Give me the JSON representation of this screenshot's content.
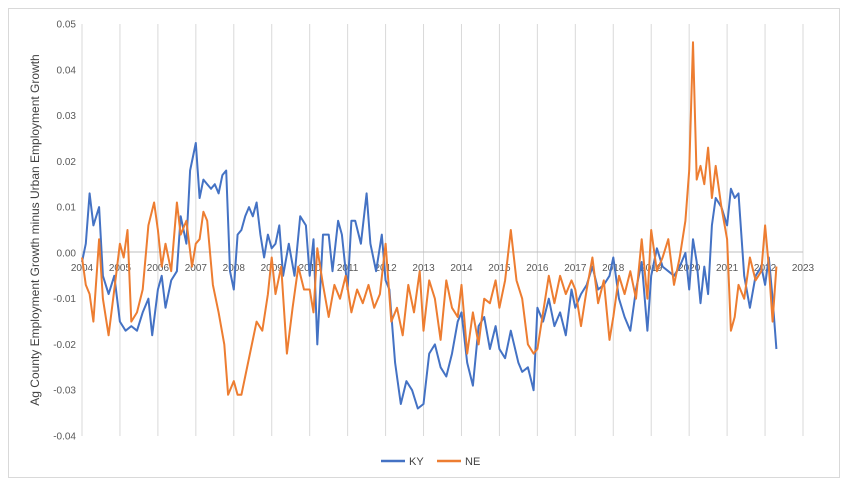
{
  "chart_data": {
    "type": "line",
    "title": "",
    "xlabel": "",
    "ylabel": "Ag County Employment Growth minus Urban Employment Growth",
    "xlim": [
      2004,
      2023
    ],
    "ylim": [
      -0.04,
      0.05
    ],
    "x_ticks": [
      "2004",
      "2005",
      "2006",
      "2007",
      "2008",
      "2009",
      "2010",
      "2011",
      "2012",
      "2013",
      "2014",
      "2015",
      "2016",
      "2017",
      "2018",
      "2019",
      "2020",
      "2021",
      "2022",
      "2023"
    ],
    "y_ticks": [
      "-0.04",
      "-0.03",
      "-0.02",
      "-0.01",
      "0.00",
      "0.01",
      "0.02",
      "0.03",
      "0.04",
      "0.05"
    ],
    "y_tick_values": [
      -0.04,
      -0.03,
      -0.02,
      -0.01,
      0,
      0.01,
      0.02,
      0.03,
      0.04,
      0.05
    ],
    "grid": "vertical",
    "legend": "bottom-center",
    "series": [
      {
        "name": "KY",
        "color": "#4472C4",
        "x": [
          2004.0,
          2004.1,
          2004.2,
          2004.3,
          2004.45,
          2004.55,
          2004.7,
          2004.85,
          2005.0,
          2005.15,
          2005.3,
          2005.45,
          2005.6,
          2005.75,
          2005.85,
          2006.0,
          2006.1,
          2006.2,
          2006.35,
          2006.5,
          2006.6,
          2006.75,
          2006.85,
          2007.0,
          2007.1,
          2007.2,
          2007.3,
          2007.4,
          2007.5,
          2007.6,
          2007.7,
          2007.8,
          2007.9,
          2008.0,
          2008.1,
          2008.2,
          2008.3,
          2008.4,
          2008.5,
          2008.6,
          2008.7,
          2008.8,
          2008.9,
          2009.0,
          2009.1,
          2009.2,
          2009.3,
          2009.45,
          2009.6,
          2009.75,
          2009.9,
          2010.0,
          2010.1,
          2010.2,
          2010.35,
          2010.5,
          2010.6,
          2010.75,
          2010.85,
          2011.0,
          2011.1,
          2011.2,
          2011.35,
          2011.5,
          2011.6,
          2011.75,
          2011.9,
          2012.0,
          2012.1,
          2012.25,
          2012.4,
          2012.55,
          2012.7,
          2012.85,
          2013.0,
          2013.15,
          2013.3,
          2013.45,
          2013.6,
          2013.75,
          2013.9,
          2014.0,
          2014.15,
          2014.3,
          2014.45,
          2014.6,
          2014.75,
          2014.9,
          2015.0,
          2015.15,
          2015.3,
          2015.5,
          2015.6,
          2015.75,
          2015.9,
          2016.0,
          2016.15,
          2016.3,
          2016.45,
          2016.6,
          2016.75,
          2016.9,
          2017.0,
          2017.15,
          2017.3,
          2017.45,
          2017.6,
          2017.75,
          2017.9,
          2018.0,
          2018.15,
          2018.3,
          2018.45,
          2018.6,
          2018.75,
          2018.9,
          2019.0,
          2019.15,
          2019.3,
          2019.45,
          2019.6,
          2019.75,
          2019.9,
          2020.0,
          2020.1,
          2020.2,
          2020.3,
          2020.4,
          2020.5,
          2020.6,
          2020.7,
          2020.85,
          2021.0,
          2021.1,
          2021.2,
          2021.3,
          2021.45,
          2021.6,
          2021.75,
          2021.9,
          2022.0,
          2022.1,
          2022.2,
          2022.3
        ],
        "y": [
          -0.002,
          0.002,
          0.013,
          0.006,
          0.01,
          -0.005,
          -0.009,
          -0.005,
          -0.015,
          -0.017,
          -0.016,
          -0.017,
          -0.013,
          -0.01,
          -0.018,
          -0.008,
          -0.005,
          -0.012,
          -0.006,
          -0.004,
          0.008,
          0.002,
          0.018,
          0.024,
          0.012,
          0.016,
          0.015,
          0.014,
          0.015,
          0.013,
          0.017,
          0.018,
          -0.004,
          -0.008,
          0.004,
          0.005,
          0.008,
          0.01,
          0.008,
          0.011,
          0.004,
          -0.001,
          0.004,
          0.001,
          0.002,
          0.006,
          -0.005,
          0.002,
          -0.005,
          0.008,
          0.006,
          -0.005,
          0.003,
          -0.02,
          0.004,
          0.004,
          -0.004,
          0.007,
          0.004,
          -0.008,
          0.007,
          0.007,
          0.002,
          0.013,
          0.002,
          -0.004,
          0.004,
          -0.006,
          -0.008,
          -0.024,
          -0.033,
          -0.028,
          -0.03,
          -0.034,
          -0.033,
          -0.022,
          -0.02,
          -0.025,
          -0.027,
          -0.022,
          -0.015,
          -0.013,
          -0.024,
          -0.029,
          -0.016,
          -0.014,
          -0.021,
          -0.016,
          -0.021,
          -0.023,
          -0.017,
          -0.024,
          -0.026,
          -0.025,
          -0.03,
          -0.012,
          -0.015,
          -0.01,
          -0.016,
          -0.013,
          -0.018,
          -0.008,
          -0.012,
          -0.009,
          -0.007,
          -0.003,
          -0.008,
          -0.007,
          -0.005,
          -0.001,
          -0.01,
          -0.014,
          -0.017,
          -0.008,
          -0.002,
          -0.017,
          -0.005,
          0.001,
          -0.003,
          -0.004,
          -0.005,
          -0.003,
          0.0,
          -0.008,
          0.003,
          -0.002,
          -0.011,
          -0.003,
          -0.009,
          0.006,
          0.012,
          0.01,
          0.006,
          0.014,
          0.012,
          0.013,
          -0.005,
          -0.012,
          -0.005,
          -0.003,
          -0.007,
          -0.001,
          -0.01,
          -0.021
        ]
      },
      {
        "name": "NE",
        "color": "#ED7D31",
        "x": [
          2004.0,
          2004.1,
          2004.2,
          2004.3,
          2004.45,
          2004.55,
          2004.7,
          2004.85,
          2005.0,
          2005.1,
          2005.2,
          2005.3,
          2005.45,
          2005.6,
          2005.75,
          2005.9,
          2006.0,
          2006.1,
          2006.2,
          2006.35,
          2006.5,
          2006.6,
          2006.75,
          2006.9,
          2007.0,
          2007.1,
          2007.2,
          2007.3,
          2007.45,
          2007.6,
          2007.75,
          2007.85,
          2008.0,
          2008.1,
          2008.2,
          2008.3,
          2008.45,
          2008.6,
          2008.75,
          2008.9,
          2009.0,
          2009.1,
          2009.25,
          2009.4,
          2009.55,
          2009.7,
          2009.85,
          2010.0,
          2010.1,
          2010.2,
          2010.35,
          2010.5,
          2010.65,
          2010.8,
          2010.95,
          2011.1,
          2011.25,
          2011.4,
          2011.55,
          2011.7,
          2011.85,
          2012.0,
          2012.15,
          2012.3,
          2012.45,
          2012.6,
          2012.75,
          2012.9,
          2013.0,
          2013.15,
          2013.3,
          2013.45,
          2013.6,
          2013.75,
          2013.9,
          2014.0,
          2014.15,
          2014.3,
          2014.45,
          2014.6,
          2014.75,
          2014.9,
          2015.0,
          2015.15,
          2015.3,
          2015.45,
          2015.6,
          2015.75,
          2015.9,
          2016.0,
          2016.15,
          2016.3,
          2016.45,
          2016.6,
          2016.75,
          2016.9,
          2017.0,
          2017.15,
          2017.3,
          2017.45,
          2017.6,
          2017.75,
          2017.9,
          2018.0,
          2018.15,
          2018.3,
          2018.45,
          2018.6,
          2018.75,
          2018.9,
          2019.0,
          2019.15,
          2019.3,
          2019.45,
          2019.6,
          2019.75,
          2019.9,
          2020.0,
          2020.1,
          2020.2,
          2020.3,
          2020.4,
          2020.5,
          2020.6,
          2020.7,
          2020.85,
          2021.0,
          2021.1,
          2021.2,
          2021.3,
          2021.45,
          2021.6,
          2021.75,
          2021.9,
          2022.0,
          2022.1,
          2022.2,
          2022.3
        ],
        "y": [
          -0.001,
          -0.007,
          -0.009,
          -0.015,
          0.003,
          -0.01,
          -0.018,
          -0.008,
          0.002,
          -0.001,
          0.005,
          -0.015,
          -0.013,
          -0.008,
          0.006,
          0.011,
          0.005,
          -0.003,
          0.002,
          -0.004,
          0.011,
          0.004,
          0.007,
          -0.003,
          0.002,
          0.003,
          0.009,
          0.007,
          -0.007,
          -0.013,
          -0.02,
          -0.031,
          -0.028,
          -0.031,
          -0.031,
          -0.027,
          -0.021,
          -0.015,
          -0.017,
          -0.009,
          -0.001,
          -0.009,
          -0.003,
          -0.022,
          -0.012,
          -0.003,
          -0.008,
          -0.008,
          -0.013,
          0.001,
          -0.007,
          -0.014,
          -0.007,
          -0.01,
          -0.005,
          -0.013,
          -0.008,
          -0.011,
          -0.007,
          -0.012,
          -0.009,
          0.002,
          -0.015,
          -0.012,
          -0.018,
          -0.007,
          -0.013,
          -0.004,
          -0.017,
          -0.006,
          -0.01,
          -0.019,
          -0.006,
          -0.012,
          -0.014,
          -0.007,
          -0.022,
          -0.013,
          -0.02,
          -0.01,
          -0.011,
          -0.006,
          -0.012,
          -0.006,
          0.005,
          -0.006,
          -0.01,
          -0.02,
          -0.022,
          -0.021,
          -0.013,
          -0.005,
          -0.011,
          -0.005,
          -0.009,
          -0.006,
          -0.008,
          -0.016,
          -0.008,
          -0.001,
          -0.011,
          -0.006,
          -0.019,
          -0.014,
          -0.005,
          -0.009,
          -0.004,
          -0.01,
          0.003,
          -0.01,
          0.005,
          -0.004,
          -0.001,
          0.003,
          -0.007,
          -0.001,
          0.007,
          0.018,
          0.046,
          0.016,
          0.019,
          0.015,
          0.023,
          0.012,
          0.019,
          0.01,
          0.003,
          -0.017,
          -0.014,
          -0.007,
          -0.01,
          -0.001,
          -0.006,
          -0.004,
          0.006,
          -0.003,
          -0.015,
          -0.003
        ]
      }
    ]
  }
}
